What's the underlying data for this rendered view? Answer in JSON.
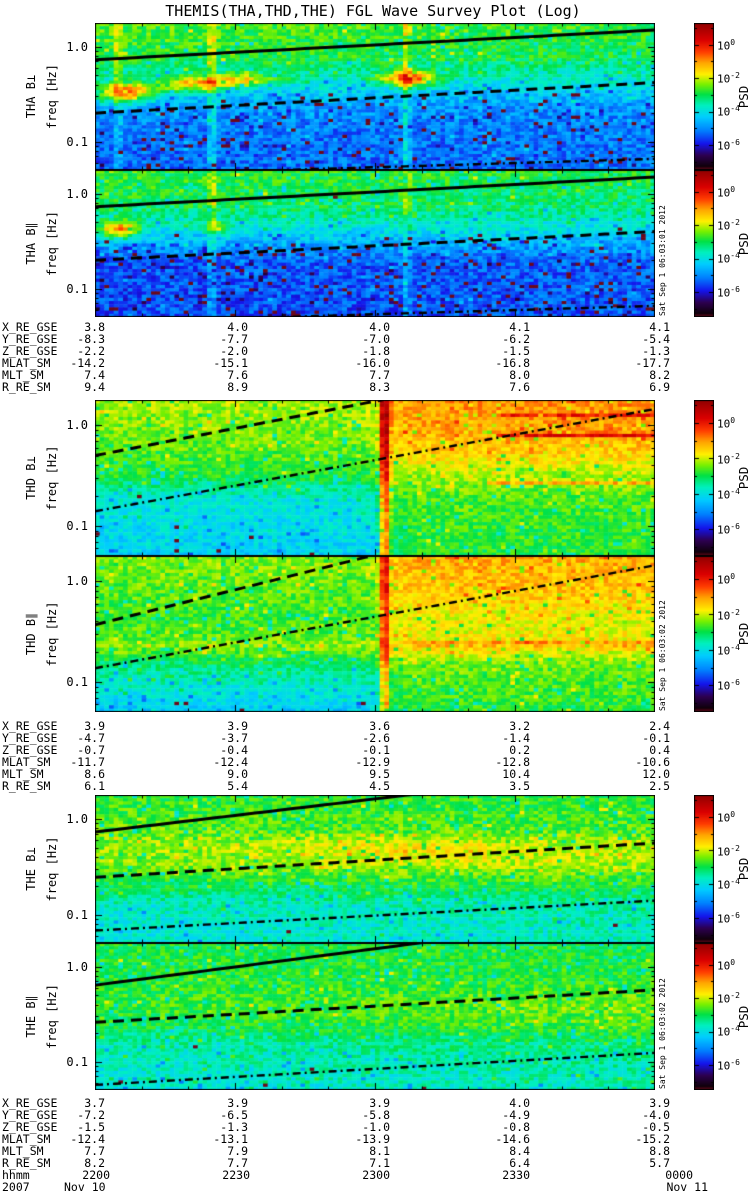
{
  "chart_data": {
    "type": "heatmap",
    "title": "THEMIS(THA,THD,THE) FGL Wave Survey Plot (Log)",
    "scale": "log",
    "freq_range_hz": [
      0.05,
      1.78
    ],
    "time_range": "2200 Nov 10 2007 to 0000 Nov 11 2007",
    "colorbar": {
      "base": "10",
      "exponents": [
        "0",
        "-2",
        "-4",
        "-6"
      ],
      "label": "PSD [nT²/Hz]"
    },
    "time_axis": {
      "label": "hhmm",
      "ticks": [
        "2200",
        "2230",
        "2300",
        "2330",
        "0000"
      ],
      "year": "2007",
      "date_start": "Nov 10",
      "date_end": "Nov 11"
    },
    "panels": [
      {
        "id": "THA",
        "timestamp": "Sat Sep 1 06:03:01 2012",
        "subpanels": [
          {
            "label": "THA B⊥",
            "ylabel": "freq [Hz]",
            "yticks": [
              "1.0",
              "0.1"
            ],
            "seed": 11,
            "noise": 0.55,
            "profile": [
              {
                "f": 1.8,
                "l": -2.55,
                "r": -2.75
              },
              {
                "f": 0.75,
                "l": -2.85,
                "r": -3.05
              },
              {
                "f": 0.5,
                "l": -3.5,
                "r": -3.6
              },
              {
                "f": 0.32,
                "l": -4.3,
                "r": -4.4
              },
              {
                "f": 0.22,
                "l": -4.9,
                "r": -4.9
              },
              {
                "f": 0.12,
                "l": -5.2,
                "r": -5.1
              },
              {
                "f": 0.05,
                "l": -5.35,
                "r": -5.2
              }
            ],
            "features": [
              {
                "ty": "b",
                "t": 0.055,
                "f": 0.33,
                "dt": 0.05,
                "df": 0.1,
                "a": 3.6
              },
              {
                "ty": "b",
                "t": 0.175,
                "f": 0.4,
                "dt": 0.06,
                "df": 0.08,
                "a": 2.4
              },
              {
                "ty": "b",
                "t": 0.26,
                "f": 0.44,
                "dt": 0.07,
                "df": 0.07,
                "a": 2.0
              },
              {
                "ty": "b",
                "t": 0.56,
                "f": 0.46,
                "dt": 0.05,
                "df": 0.08,
                "a": 3.3
              },
              {
                "ty": "v",
                "t": 0.04,
                "w": 0.008,
                "a": 0.7
              },
              {
                "ty": "v",
                "t": 0.21,
                "w": 0.008,
                "a": 0.9
              },
              {
                "ty": "v",
                "t": 0.555,
                "w": 0.008,
                "a": 1.1
              }
            ],
            "lines": [
              {
                "s": "solid",
                "f0": 0.73,
                "f1": 1.5
              },
              {
                "s": "dash",
                "f0": 0.2,
                "f1": 0.42
              },
              {
                "s": "dashdot",
                "f0": 0.044,
                "f1": 0.066
              }
            ]
          },
          {
            "label": "THA B∥",
            "ylabel": "freq [Hz]",
            "yticks": [
              "1.0",
              "0.1"
            ],
            "seed": 23,
            "noise": 0.55,
            "profile": [
              {
                "f": 1.8,
                "l": -2.7,
                "r": -2.9
              },
              {
                "f": 0.7,
                "l": -3.05,
                "r": -3.25
              },
              {
                "f": 0.45,
                "l": -3.8,
                "r": -3.9
              },
              {
                "f": 0.3,
                "l": -4.6,
                "r": -4.6
              },
              {
                "f": 0.2,
                "l": -5.4,
                "r": -5.3
              },
              {
                "f": 0.05,
                "l": -5.6,
                "r": -5.35
              }
            ],
            "features": [
              {
                "ty": "b",
                "t": 0.045,
                "f": 0.42,
                "dt": 0.035,
                "df": 0.09,
                "a": 3.0
              },
              {
                "ty": "b",
                "t": 0.215,
                "f": 0.44,
                "dt": 0.025,
                "df": 0.06,
                "a": 1.6
              },
              {
                "ty": "v",
                "t": 0.21,
                "w": 0.008,
                "a": 0.7
              },
              {
                "ty": "v",
                "t": 0.555,
                "w": 0.008,
                "a": 0.7
              }
            ],
            "lines": [
              {
                "s": "solid",
                "f0": 0.73,
                "f1": 1.5
              },
              {
                "s": "dash",
                "f0": 0.2,
                "f1": 0.4
              },
              {
                "s": "dashdot",
                "f0": 0.044,
                "f1": 0.066
              }
            ]
          }
        ],
        "ephemeris": {
          "labels": [
            "X_RE_GSE",
            "Y_RE_GSE",
            "Z_RE_GSE",
            "MLAT_SM",
            "MLT_SM",
            "R_RE_SM"
          ],
          "rows": [
            [
              "3.8",
              "4.0",
              "4.0",
              "4.1",
              "4.1"
            ],
            [
              "-8.3",
              "-7.7",
              "-7.0",
              "-6.2",
              "-5.4"
            ],
            [
              "-2.2",
              "-2.0",
              "-1.8",
              "-1.5",
              "-1.3"
            ],
            [
              "-14.2",
              "-15.1",
              "-16.0",
              "-16.8",
              "-17.7"
            ],
            [
              "7.4",
              "7.6",
              "7.7",
              "8.0",
              "8.2"
            ],
            [
              "9.4",
              "8.9",
              "8.3",
              "7.6",
              "6.9"
            ]
          ]
        }
      },
      {
        "id": "THD",
        "timestamp": "Sat Sep 1 06:03:02 2012",
        "subpanels": [
          {
            "label": "THD B⊥",
            "ylabel": "freq [Hz]",
            "yticks": [
              "1.0",
              "0.1"
            ],
            "seed": 37,
            "noise": 0.45,
            "step": 0.518,
            "profile": [
              {
                "f": 1.8,
                "l": -2.15,
                "r": -0.95
              },
              {
                "f": 0.9,
                "l": -2.35,
                "r": -1.1
              },
              {
                "f": 0.5,
                "l": -2.55,
                "r": -1.5
              },
              {
                "f": 0.3,
                "l": -2.9,
                "r": -2.25
              },
              {
                "f": 0.18,
                "l": -3.85,
                "r": -2.6
              },
              {
                "f": 0.05,
                "l": -4.25,
                "r": -2.85
              }
            ],
            "features": [
              {
                "ty": "v",
                "t": 0.518,
                "w": 0.01,
                "a": 2.4
              },
              {
                "ty": "h",
                "f": 0.8,
                "t0": 0.72,
                "t1": 1.0,
                "a": 1.5
              },
              {
                "ty": "h",
                "f": 1.25,
                "t0": 0.73,
                "t1": 1.0,
                "a": 1.0
              },
              {
                "ty": "h",
                "f": 0.27,
                "t0": 0.7,
                "t1": 1.0,
                "a": 1.2
              }
            ],
            "lines": [
              {
                "s": "dash",
                "f0": 0.5,
                "f1": 6.0
              },
              {
                "s": "dashdot",
                "f0": 0.14,
                "f1": 1.45
              }
            ]
          },
          {
            "label": "THD B∥",
            "ylabel": "freq [Hz]",
            "yticks": [
              "1.0",
              "0.1"
            ],
            "seed": 41,
            "noise": 0.45,
            "step": 0.518,
            "profile": [
              {
                "f": 1.8,
                "l": -2.3,
                "r": -1.1
              },
              {
                "f": 0.8,
                "l": -2.5,
                "r": -1.35
              },
              {
                "f": 0.45,
                "l": -2.7,
                "r": -1.8
              },
              {
                "f": 0.3,
                "l": -2.55,
                "r": -1.8
              },
              {
                "f": 0.22,
                "l": -2.25,
                "r": -1.55
              },
              {
                "f": 0.15,
                "l": -3.2,
                "r": -2.45
              },
              {
                "f": 0.05,
                "l": -4.35,
                "r": -2.8
              }
            ],
            "features": [
              {
                "ty": "v",
                "t": 0.518,
                "w": 0.009,
                "a": 1.8
              },
              {
                "ty": "h",
                "f": 0.24,
                "t0": 0.55,
                "t1": 1.0,
                "a": 0.9
              }
            ],
            "lines": [
              {
                "s": "dash",
                "f0": 0.37,
                "f1": 9.0
              },
              {
                "s": "dashdot",
                "f0": 0.137,
                "f1": 1.44
              }
            ]
          }
        ],
        "ephemeris": {
          "labels": [
            "X_RE_GSE",
            "Y_RE_GSE",
            "Z_RE_GSE",
            "MLAT_SM",
            "MLT_SM",
            "R_RE_SM"
          ],
          "rows": [
            [
              "3.9",
              "3.9",
              "3.6",
              "3.2",
              "2.4"
            ],
            [
              "-4.7",
              "-3.7",
              "-2.6",
              "-1.4",
              "-0.1"
            ],
            [
              "-0.7",
              "-0.4",
              "-0.1",
              "0.2",
              "0.4"
            ],
            [
              "-11.7",
              "-12.4",
              "-12.9",
              "-12.8",
              "-10.6"
            ],
            [
              "8.6",
              "9.0",
              "9.5",
              "10.4",
              "12.0"
            ],
            [
              "6.1",
              "5.4",
              "4.5",
              "3.5",
              "2.5"
            ]
          ]
        }
      },
      {
        "id": "THE",
        "timestamp": "Sat Sep 1 06:03:02 2012",
        "subpanels": [
          {
            "label": "THE B⊥",
            "ylabel": "freq [Hz]",
            "yticks": [
              "1.0",
              "0.1"
            ],
            "seed": 53,
            "noise": 0.5,
            "profile": [
              {
                "f": 1.8,
                "l": -2.75,
                "r": -2.85
              },
              {
                "f": 0.8,
                "l": -2.55,
                "r": -2.6
              },
              {
                "f": 0.55,
                "l": -2.25,
                "r": -2.15
              },
              {
                "f": 0.33,
                "l": -2.4,
                "r": -2.15
              },
              {
                "f": 0.2,
                "l": -3.0,
                "r": -2.85
              },
              {
                "f": 0.12,
                "l": -3.7,
                "r": -3.5
              },
              {
                "f": 0.05,
                "l": -3.9,
                "r": -3.7
              }
            ],
            "features": [
              {
                "ty": "b",
                "t": 0.55,
                "f": 0.45,
                "dt": 0.22,
                "df": 0.13,
                "a": 0.55
              }
            ],
            "lines": [
              {
                "s": "solid",
                "f0": 0.73,
                "f1": 3.6
              },
              {
                "s": "dash",
                "f0": 0.245,
                "f1": 0.56
              },
              {
                "s": "dashdot",
                "f0": 0.068,
                "f1": 0.14
              }
            ]
          },
          {
            "label": "THE B∥",
            "ylabel": "freq [Hz]",
            "yticks": [
              "1.0",
              "0.1"
            ],
            "seed": 67,
            "noise": 0.5,
            "profile": [
              {
                "f": 1.8,
                "l": -2.9,
                "r": -2.95
              },
              {
                "f": 0.7,
                "l": -2.85,
                "r": -2.8
              },
              {
                "f": 0.4,
                "l": -2.75,
                "r": -2.35
              },
              {
                "f": 0.25,
                "l": -3.0,
                "r": -2.5
              },
              {
                "f": 0.15,
                "l": -3.55,
                "r": -3.25
              },
              {
                "f": 0.05,
                "l": -3.9,
                "r": -3.6
              }
            ],
            "features": [],
            "lines": [
              {
                "s": "solid",
                "f0": 0.64,
                "f1": 3.74
              },
              {
                "s": "dash",
                "f0": 0.26,
                "f1": 0.57
              },
              {
                "s": "dashdot",
                "f0": 0.057,
                "f1": 0.124
              }
            ]
          }
        ],
        "ephemeris": {
          "labels": [
            "X_RE_GSE",
            "Y_RE_GSE",
            "Z_RE_GSE",
            "MLAT_SM",
            "MLT_SM",
            "R_RE_SM"
          ],
          "rows": [
            [
              "3.7",
              "3.9",
              "3.9",
              "4.0",
              "3.9"
            ],
            [
              "-7.2",
              "-6.5",
              "-5.8",
              "-4.9",
              "-4.0"
            ],
            [
              "-1.5",
              "-1.3",
              "-1.0",
              "-0.8",
              "-0.5"
            ],
            [
              "-12.4",
              "-13.1",
              "-13.9",
              "-14.6",
              "-15.2"
            ],
            [
              "7.7",
              "7.9",
              "8.1",
              "8.4",
              "8.8"
            ],
            [
              "8.2",
              "7.7",
              "7.1",
              "6.4",
              "5.7"
            ]
          ]
        }
      }
    ]
  }
}
